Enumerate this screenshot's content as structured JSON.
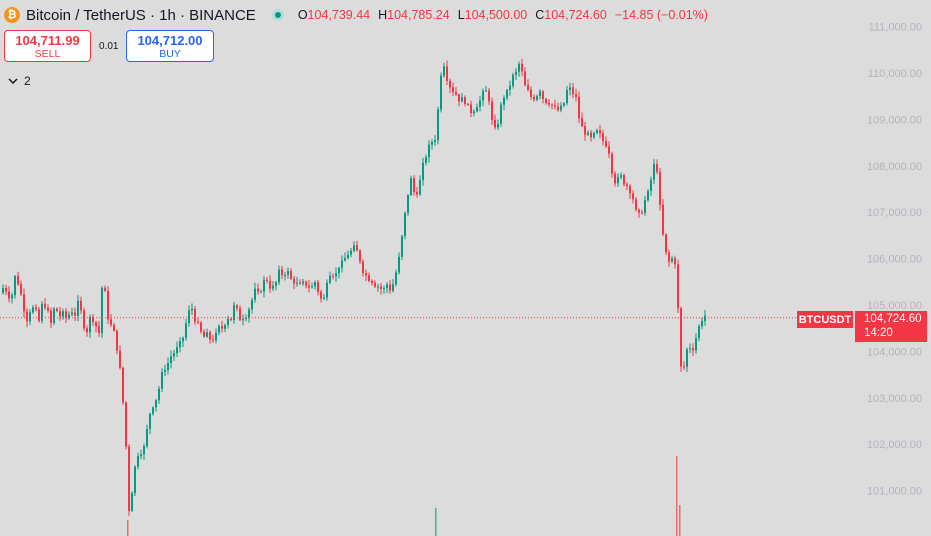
{
  "header": {
    "coin_icon": "bitcoin-icon",
    "symbol": "Bitcoin / TetherUS · 1h · BINANCE",
    "market_status_icon": "market-open-dot-icon",
    "open_label": "O",
    "open": "104,739.44",
    "high_label": "H",
    "high": "104,785.24",
    "low_label": "L",
    "low": "104,500.00",
    "close_label": "C",
    "close": "104,724.60",
    "change": "−14.85 (−0.01%)"
  },
  "trade": {
    "sell_price": "104,711.99",
    "sell_label": "SELL",
    "spread": "0.01",
    "buy_price": "104,712.00",
    "buy_label": "BUY"
  },
  "indicators": {
    "toggle_icon": "chevron-down-icon",
    "count": "2"
  },
  "price_tag": {
    "symbol": "BTCUSDT",
    "price": "104,724.60",
    "countdown": "14:20"
  },
  "colors": {
    "up": "#089981",
    "down": "#f23645",
    "background": "#dcdcdc",
    "axis_text": "#b2b5be"
  },
  "chart_data": {
    "type": "candlestick",
    "interval": "1h",
    "y_ticks": [
      111000,
      110000,
      109000,
      108000,
      107000,
      106000,
      105000,
      104000,
      103000,
      102000,
      101000
    ],
    "y_tick_labels": [
      "111,000.00",
      "110,000.00",
      "109,000.00",
      "108,000.00",
      "107,000.00",
      "106,000.00",
      "105,000.00",
      "104,000.00",
      "103,000.00",
      "102,000.00",
      "101,000.00"
    ],
    "ylim": [
      100000,
      111400
    ],
    "last_price": 104724.6,
    "close_path": [
      [
        0,
        105300
      ],
      [
        3,
        105400
      ],
      [
        7,
        105250
      ],
      [
        10,
        105100
      ],
      [
        14,
        105600
      ],
      [
        18,
        105450
      ],
      [
        22,
        105000
      ],
      [
        26,
        104700
      ],
      [
        30,
        104950
      ],
      [
        34,
        104900
      ],
      [
        38,
        104650
      ],
      [
        42,
        105100
      ],
      [
        46,
        104900
      ],
      [
        50,
        104600
      ],
      [
        54,
        105000
      ],
      [
        58,
        104750
      ],
      [
        62,
        104800
      ],
      [
        66,
        104700
      ],
      [
        70,
        104900
      ],
      [
        74,
        104800
      ],
      [
        78,
        105100
      ],
      [
        82,
        104600
      ],
      [
        86,
        104450
      ],
      [
        90,
        104800
      ],
      [
        94,
        104600
      ],
      [
        98,
        104400
      ],
      [
        102,
        105700
      ],
      [
        106,
        104800
      ],
      [
        110,
        104550
      ],
      [
        114,
        104350
      ],
      [
        118,
        103800
      ],
      [
        121,
        103200
      ],
      [
        124,
        102300
      ],
      [
        126,
        101600
      ],
      [
        128,
        100600
      ],
      [
        131,
        101000
      ],
      [
        134,
        101500
      ],
      [
        138,
        101900
      ],
      [
        142,
        101800
      ],
      [
        146,
        102300
      ],
      [
        150,
        102800
      ],
      [
        154,
        102900
      ],
      [
        158,
        103200
      ],
      [
        162,
        103600
      ],
      [
        166,
        103700
      ],
      [
        170,
        103900
      ],
      [
        174,
        104000
      ],
      [
        178,
        104100
      ],
      [
        182,
        104300
      ],
      [
        186,
        104700
      ],
      [
        190,
        105000
      ],
      [
        194,
        104700
      ],
      [
        198,
        104500
      ],
      [
        202,
        104300
      ],
      [
        206,
        104350
      ],
      [
        210,
        104250
      ],
      [
        214,
        104300
      ],
      [
        218,
        104500
      ],
      [
        222,
        104500
      ],
      [
        226,
        104750
      ],
      [
        230,
        104700
      ],
      [
        234,
        105050
      ],
      [
        238,
        104700
      ],
      [
        242,
        104750
      ],
      [
        246,
        104800
      ],
      [
        250,
        105050
      ],
      [
        254,
        105300
      ],
      [
        258,
        105200
      ],
      [
        262,
        105500
      ],
      [
        266,
        105550
      ],
      [
        270,
        105350
      ],
      [
        274,
        105400
      ],
      [
        278,
        105700
      ],
      [
        282,
        105650
      ],
      [
        286,
        105750
      ],
      [
        290,
        105550
      ],
      [
        294,
        105500
      ],
      [
        298,
        105400
      ],
      [
        302,
        105450
      ],
      [
        306,
        105450
      ],
      [
        310,
        105350
      ],
      [
        314,
        105500
      ],
      [
        318,
        105250
      ],
      [
        322,
        105000
      ],
      [
        326,
        105550
      ],
      [
        330,
        105750
      ],
      [
        334,
        105600
      ],
      [
        338,
        105850
      ],
      [
        342,
        105900
      ],
      [
        346,
        106100
      ],
      [
        350,
        106150
      ],
      [
        354,
        106250
      ],
      [
        358,
        106050
      ],
      [
        362,
        105750
      ],
      [
        366,
        105600
      ],
      [
        370,
        105550
      ],
      [
        374,
        105450
      ],
      [
        378,
        105400
      ],
      [
        382,
        105300
      ],
      [
        386,
        105450
      ],
      [
        390,
        105300
      ],
      [
        394,
        105600
      ],
      [
        398,
        106000
      ],
      [
        402,
        106600
      ],
      [
        406,
        107300
      ],
      [
        410,
        107700
      ],
      [
        414,
        107350
      ],
      [
        418,
        107550
      ],
      [
        422,
        108000
      ],
      [
        426,
        108300
      ],
      [
        430,
        108500
      ],
      [
        434,
        108600
      ],
      [
        437,
        109200
      ],
      [
        440,
        110000
      ],
      [
        443,
        110200
      ],
      [
        447,
        109800
      ],
      [
        451,
        109650
      ],
      [
        455,
        109550
      ],
      [
        459,
        109400
      ],
      [
        463,
        109450
      ],
      [
        467,
        109250
      ],
      [
        471,
        109150
      ],
      [
        475,
        109300
      ],
      [
        479,
        109400
      ],
      [
        483,
        109600
      ],
      [
        487,
        109600
      ],
      [
        491,
        108950
      ],
      [
        495,
        108700
      ],
      [
        499,
        109200
      ],
      [
        503,
        109500
      ],
      [
        507,
        109600
      ],
      [
        511,
        109900
      ],
      [
        515,
        110000
      ],
      [
        519,
        110250
      ],
      [
        523,
        109750
      ],
      [
        527,
        109600
      ],
      [
        531,
        109450
      ],
      [
        535,
        109500
      ],
      [
        539,
        109650
      ],
      [
        543,
        109400
      ],
      [
        547,
        109400
      ],
      [
        551,
        109300
      ],
      [
        555,
        109200
      ],
      [
        559,
        109200
      ],
      [
        563,
        109350
      ],
      [
        567,
        109700
      ],
      [
        571,
        109600
      ],
      [
        575,
        109450
      ],
      [
        579,
        108900
      ],
      [
        583,
        108750
      ],
      [
        587,
        108650
      ],
      [
        591,
        108550
      ],
      [
        595,
        108750
      ],
      [
        599,
        108650
      ],
      [
        603,
        108500
      ],
      [
        607,
        108450
      ],
      [
        611,
        107900
      ],
      [
        615,
        107600
      ],
      [
        619,
        107800
      ],
      [
        623,
        107650
      ],
      [
        627,
        107550
      ],
      [
        631,
        107400
      ],
      [
        635,
        107000
      ],
      [
        639,
        106900
      ],
      [
        643,
        107200
      ],
      [
        647,
        107400
      ],
      [
        651,
        107800
      ],
      [
        655,
        108200
      ],
      [
        659,
        107100
      ],
      [
        663,
        106300
      ],
      [
        667,
        105900
      ],
      [
        671,
        106000
      ],
      [
        675,
        105900
      ],
      [
        677,
        104900
      ],
      [
        679,
        103700
      ],
      [
        681,
        103600
      ],
      [
        684,
        103700
      ],
      [
        687,
        104200
      ],
      [
        691,
        104000
      ],
      [
        695,
        104300
      ],
      [
        699,
        104600
      ],
      [
        703,
        104800
      ],
      [
        706,
        104725
      ]
    ]
  }
}
